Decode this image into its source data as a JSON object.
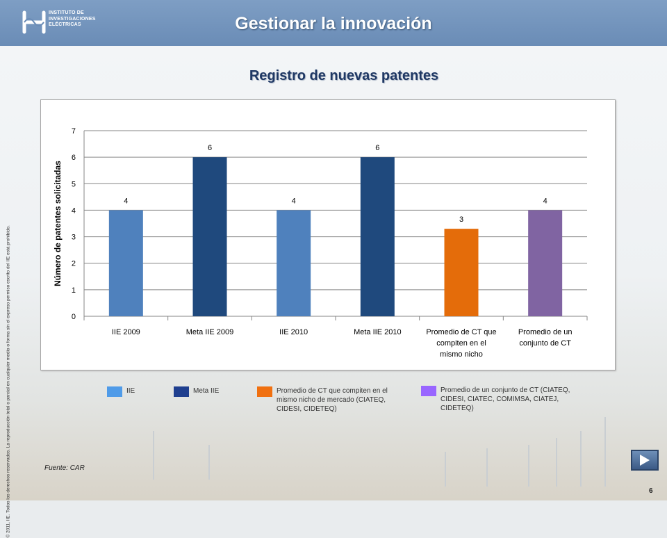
{
  "header": {
    "title": "Gestionar la innovación",
    "logo_lines": [
      "INSTITUTO DE",
      "INVESTIGACIONES",
      "ELÉCTRICAS"
    ]
  },
  "subtitle": "Registro de nuevas patentes",
  "copyright": "© 2011, IIE. Todos los derechos reservados. La reproducción total o parcial en cualquier medio o forma sin el expreso permiso escrito del IIE está prohibido.",
  "chart_data": {
    "type": "bar",
    "categories": [
      "IIE 2009",
      "Meta IIE 2009",
      "IIE 2010",
      "Meta IIE 2010",
      "Promedio de CT que compiten en el mismo nicho",
      "Promedio de un conjunto de CT"
    ],
    "category_lines": [
      [
        "IIE 2009"
      ],
      [
        "Meta IIE 2009"
      ],
      [
        "IIE 2010"
      ],
      [
        "Meta IIE 2010"
      ],
      [
        "Promedio de CT que",
        "compiten en el",
        "mismo nicho"
      ],
      [
        "Promedio de un",
        "conjunto de CT"
      ]
    ],
    "values": [
      4,
      6,
      4,
      6,
      3.3,
      4
    ],
    "data_labels": [
      "4",
      "6",
      "4",
      "6",
      "3",
      "4"
    ],
    "colors": [
      "#4f81bd",
      "#1f497d",
      "#4f81bd",
      "#1f497d",
      "#e46c0a",
      "#8064a2"
    ],
    "ylabel": "Número de patentes solicitadas",
    "ylim": [
      0,
      7
    ],
    "yticks": [
      "0",
      "1",
      "2",
      "3",
      "4",
      "5",
      "6",
      "7"
    ],
    "grid": true
  },
  "legend": [
    {
      "label": "IIE",
      "color": "#4f9be8"
    },
    {
      "label": "Meta IIE",
      "color": "#1f3f8f"
    },
    {
      "label": "Promedio de CT que compiten en el mismo nicho de mercado (CIATEQ, CIDESI, CIDETEQ)",
      "color": "#f07010"
    },
    {
      "label": "Promedio de un conjunto de CT (CIATEQ, CIDESI, CIATEC, COMIMSA, CIATEJ, CIDETEQ)",
      "color": "#9966ff"
    }
  ],
  "source": "Fuente: CAR",
  "page_number": "6",
  "nav": {
    "icon": "play-next-icon"
  }
}
